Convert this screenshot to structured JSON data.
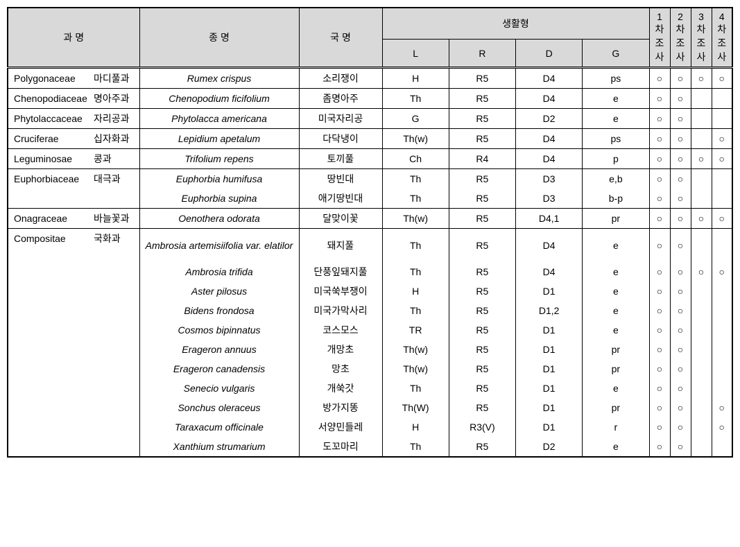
{
  "headers": {
    "family": "과  명",
    "species": "종  명",
    "korean": "국  명",
    "lifeform": "생활형",
    "L": "L",
    "R": "R",
    "D": "D",
    "G": "G",
    "survey1_1": "1",
    "survey1_2": "차",
    "survey1_3": "조",
    "survey1_4": "사",
    "survey2_1": "2",
    "survey2_2": "차",
    "survey2_3": "조",
    "survey2_4": "사",
    "survey3_1": "3",
    "survey3_2": "차",
    "survey3_3": "조",
    "survey3_4": "사",
    "survey4_1": "4",
    "survey4_2": "차",
    "survey4_3": "조",
    "survey4_4": "사"
  },
  "rows": [
    {
      "family_latin": "Polygonaceae",
      "family_kor": "마디풀과",
      "species": "Rumex crispus",
      "korean": "소리쟁이",
      "L": "H",
      "R": "R5",
      "D": "D4",
      "G": "ps",
      "s1": "○",
      "s2": "○",
      "s3": "○",
      "s4": "○"
    },
    {
      "family_latin": "Chenopodiaceae",
      "family_kor": "명아주과",
      "species": "Chenopodium ficifolium",
      "korean": "좀명아주",
      "L": "Th",
      "R": "R5",
      "D": "D4",
      "G": "e",
      "s1": "○",
      "s2": "○",
      "s3": "",
      "s4": ""
    },
    {
      "family_latin": "Phytolaccaceae",
      "family_kor": "자리공과",
      "species": "Phytolacca americana",
      "korean": "미국자리공",
      "L": "G",
      "R": "R5",
      "D": "D2",
      "G": "e",
      "s1": "○",
      "s2": "○",
      "s3": "",
      "s4": ""
    },
    {
      "family_latin": "Cruciferae",
      "family_kor": "십자화과",
      "species": "Lepidium apetalum",
      "korean": "다닥냉이",
      "L": "Th(w)",
      "R": "R5",
      "D": "D4",
      "G": "ps",
      "s1": "○",
      "s2": "○",
      "s3": "",
      "s4": "○"
    },
    {
      "family_latin": "Leguminosae",
      "family_kor": "콩과",
      "species": "Trifolium repens",
      "korean": "토끼풀",
      "L": "Ch",
      "R": "R4",
      "D": "D4",
      "G": "p",
      "s1": "○",
      "s2": "○",
      "s3": "○",
      "s4": "○"
    },
    {
      "family_latin": "Euphorbiaceae",
      "family_kor": "대극과",
      "species": "Euphorbia humifusa",
      "korean": "땅빈대",
      "L": "Th",
      "R": "R5",
      "D": "D3",
      "G": "e,b",
      "s1": "○",
      "s2": "○",
      "s3": "",
      "s4": "",
      "no_bottom": true
    },
    {
      "family_latin": "",
      "family_kor": "",
      "species": "Euphorbia supina",
      "korean": "애기땅빈대",
      "L": "Th",
      "R": "R5",
      "D": "D3",
      "G": "b-p",
      "s1": "○",
      "s2": "○",
      "s3": "",
      "s4": "",
      "no_top": true
    },
    {
      "family_latin": "Onagraceae",
      "family_kor": "바늘꽃과",
      "species": "Oenothera odorata",
      "korean": "달맞이꽃",
      "L": "Th(w)",
      "R": "R5",
      "D": "D4,1",
      "G": "pr",
      "s1": "○",
      "s2": "○",
      "s3": "○",
      "s4": "○"
    },
    {
      "family_latin": "Compositae",
      "family_kor": "국화과",
      "species": "Ambrosia artemisiifolia var. elatilor",
      "korean": "돼지풀",
      "L": "Th",
      "R": "R5",
      "D": "D4",
      "G": "e",
      "s1": "○",
      "s2": "○",
      "s3": "",
      "s4": "",
      "no_bottom": true,
      "tall": true
    },
    {
      "family_latin": "",
      "family_kor": "",
      "species": "Ambrosia trifida",
      "korean": "단풍잎돼지풀",
      "L": "Th",
      "R": "R5",
      "D": "D4",
      "G": "e",
      "s1": "○",
      "s2": "○",
      "s3": "○",
      "s4": "○",
      "no_top": true,
      "no_bottom": true
    },
    {
      "family_latin": "",
      "family_kor": "",
      "species": "Aster pilosus",
      "korean": "미국쑥부쟁이",
      "L": "H",
      "R": "R5",
      "D": "D1",
      "G": "e",
      "s1": "○",
      "s2": "○",
      "s3": "",
      "s4": "",
      "no_top": true,
      "no_bottom": true
    },
    {
      "family_latin": "",
      "family_kor": "",
      "species": "Bidens frondosa",
      "korean": "미국가막사리",
      "L": "Th",
      "R": "R5",
      "D": "D1,2",
      "G": "e",
      "s1": "○",
      "s2": "○",
      "s3": "",
      "s4": "",
      "no_top": true,
      "no_bottom": true
    },
    {
      "family_latin": "",
      "family_kor": "",
      "species": "Cosmos bipinnatus",
      "korean": "코스모스",
      "L": "TR",
      "R": "R5",
      "D": "D1",
      "G": "e",
      "s1": "○",
      "s2": "○",
      "s3": "",
      "s4": "",
      "no_top": true,
      "no_bottom": true
    },
    {
      "family_latin": "",
      "family_kor": "",
      "species": "Erageron annuus",
      "korean": "개망초",
      "L": "Th(w)",
      "R": "R5",
      "D": "D1",
      "G": "pr",
      "s1": "○",
      "s2": "○",
      "s3": "",
      "s4": "",
      "no_top": true,
      "no_bottom": true
    },
    {
      "family_latin": "",
      "family_kor": "",
      "species": "Erageron canadensis",
      "korean": "망초",
      "L": "Th(w)",
      "R": "R5",
      "D": "D1",
      "G": "pr",
      "s1": "○",
      "s2": "○",
      "s3": "",
      "s4": "",
      "no_top": true,
      "no_bottom": true
    },
    {
      "family_latin": "",
      "family_kor": "",
      "species": "Senecio vulgaris",
      "korean": "개쑥갓",
      "L": "Th",
      "R": "R5",
      "D": "D1",
      "G": "e",
      "s1": "○",
      "s2": "○",
      "s3": "",
      "s4": "",
      "no_top": true,
      "no_bottom": true
    },
    {
      "family_latin": "",
      "family_kor": "",
      "species": "Sonchus oleraceus",
      "korean": "방가지똥",
      "L": "Th(W)",
      "R": "R5",
      "D": "D1",
      "G": "pr",
      "s1": "○",
      "s2": "○",
      "s3": "",
      "s4": "○",
      "no_top": true,
      "no_bottom": true
    },
    {
      "family_latin": "",
      "family_kor": "",
      "species": "Taraxacum officinale",
      "korean": "서양민들레",
      "L": "H",
      "R": "R3(V)",
      "D": "D1",
      "G": "r",
      "s1": "○",
      "s2": "○",
      "s3": "",
      "s4": "○",
      "no_top": true,
      "no_bottom": true
    },
    {
      "family_latin": "",
      "family_kor": "",
      "species": "Xanthium strumarium",
      "korean": "도꼬마리",
      "L": "Th",
      "R": "R5",
      "D": "D2",
      "G": "e",
      "s1": "○",
      "s2": "○",
      "s3": "",
      "s4": "",
      "no_top": true,
      "last": true
    }
  ]
}
